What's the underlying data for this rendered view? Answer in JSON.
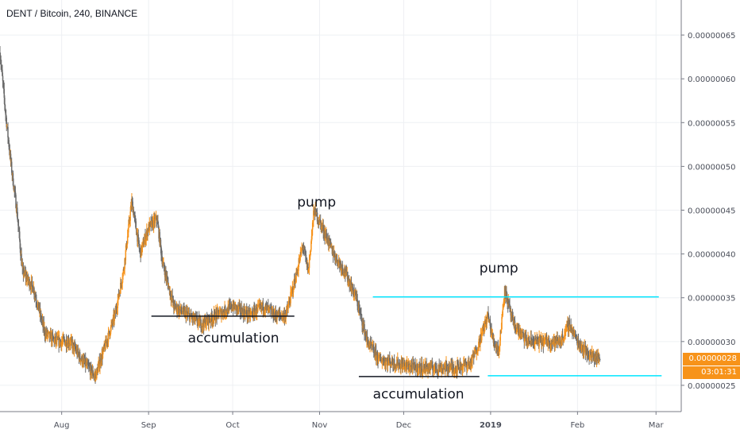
{
  "chart_data": {
    "type": "candlestick",
    "title": "DENT / Bitcoin, 240, BINANCE",
    "ylim": [
      2.2e-07,
      6.9e-07
    ],
    "y_ticks": [
      {
        "value": 2.5e-07,
        "label": "0.00000025"
      },
      {
        "value": 3e-07,
        "label": "0.00000030"
      },
      {
        "value": 3.5e-07,
        "label": "0.00000035"
      },
      {
        "value": 4e-07,
        "label": "0.00000040"
      },
      {
        "value": 4.5e-07,
        "label": "0.00000045"
      },
      {
        "value": 5e-07,
        "label": "0.00000050"
      },
      {
        "value": 5.5e-07,
        "label": "0.00000055"
      },
      {
        "value": 6e-07,
        "label": "0.00000060"
      },
      {
        "value": 6.5e-07,
        "label": "0.00000065"
      }
    ],
    "x_range": [
      "2018-07-10",
      "2019-03-10"
    ],
    "x_ticks": [
      {
        "date": "2018-08-01",
        "label": "Aug",
        "bold": false
      },
      {
        "date": "2018-09-01",
        "label": "Sep",
        "bold": false
      },
      {
        "date": "2018-10-01",
        "label": "Oct",
        "bold": false
      },
      {
        "date": "2018-11-01",
        "label": "Nov",
        "bold": false
      },
      {
        "date": "2018-12-01",
        "label": "Dec",
        "bold": false
      },
      {
        "date": "2019-01-01",
        "label": "2019",
        "bold": true
      },
      {
        "date": "2019-02-01",
        "label": "Feb",
        "bold": false
      },
      {
        "date": "2019-03-01",
        "label": "Mar",
        "bold": false
      }
    ],
    "price_path": [
      [
        "2018-07-10",
        6.3e-07
      ],
      [
        "2018-07-12",
        5.6e-07
      ],
      [
        "2018-07-14",
        5e-07
      ],
      [
        "2018-07-16",
        4.5e-07
      ],
      [
        "2018-07-18",
        3.8e-07
      ],
      [
        "2018-07-22",
        3.6e-07
      ],
      [
        "2018-07-26",
        3.1e-07
      ],
      [
        "2018-07-30",
        3e-07
      ],
      [
        "2018-08-04",
        3e-07
      ],
      [
        "2018-08-08",
        2.8e-07
      ],
      [
        "2018-08-13",
        2.6e-07
      ],
      [
        "2018-08-17",
        3e-07
      ],
      [
        "2018-08-20",
        3.3e-07
      ],
      [
        "2018-08-23",
        3.8e-07
      ],
      [
        "2018-08-26",
        4.6e-07
      ],
      [
        "2018-08-29",
        4e-07
      ],
      [
        "2018-09-01",
        4.3e-07
      ],
      [
        "2018-09-04",
        4.4e-07
      ],
      [
        "2018-09-06",
        3.9e-07
      ],
      [
        "2018-09-10",
        3.4e-07
      ],
      [
        "2018-09-15",
        3.3e-07
      ],
      [
        "2018-09-20",
        3.2e-07
      ],
      [
        "2018-09-25",
        3.3e-07
      ],
      [
        "2018-10-01",
        3.4e-07
      ],
      [
        "2018-10-07",
        3.3e-07
      ],
      [
        "2018-10-12",
        3.4e-07
      ],
      [
        "2018-10-16",
        3.3e-07
      ],
      [
        "2018-10-20",
        3.3e-07
      ],
      [
        "2018-10-24",
        3.8e-07
      ],
      [
        "2018-10-26",
        4.1e-07
      ],
      [
        "2018-10-28",
        3.8e-07
      ],
      [
        "2018-10-30",
        4.5e-07
      ],
      [
        "2018-11-02",
        4.3e-07
      ],
      [
        "2018-11-06",
        4e-07
      ],
      [
        "2018-11-10",
        3.8e-07
      ],
      [
        "2018-11-14",
        3.5e-07
      ],
      [
        "2018-11-18",
        3e-07
      ],
      [
        "2018-11-22",
        2.8e-07
      ],
      [
        "2018-11-28",
        2.75e-07
      ],
      [
        "2018-12-05",
        2.7e-07
      ],
      [
        "2018-12-12",
        2.7e-07
      ],
      [
        "2018-12-19",
        2.7e-07
      ],
      [
        "2018-12-25",
        2.75e-07
      ],
      [
        "2018-12-28",
        3e-07
      ],
      [
        "2018-12-31",
        3.3e-07
      ],
      [
        "2019-01-02",
        3e-07
      ],
      [
        "2019-01-04",
        2.9e-07
      ],
      [
        "2019-01-06",
        3.6e-07
      ],
      [
        "2019-01-09",
        3.2e-07
      ],
      [
        "2019-01-14",
        3e-07
      ],
      [
        "2019-01-20",
        3e-07
      ],
      [
        "2019-01-26",
        3e-07
      ],
      [
        "2019-01-29",
        3.2e-07
      ],
      [
        "2019-02-01",
        3e-07
      ],
      [
        "2019-02-05",
        2.85e-07
      ],
      [
        "2019-02-09",
        2.8e-07
      ]
    ],
    "candles_per_day": 6,
    "candle_up_color": "#f7931a",
    "candle_down_color": "#6b6b6b",
    "annotations": [
      {
        "type": "hline",
        "y": 3.29e-07,
        "x1": "2018-09-02",
        "x2": "2018-10-23",
        "color": "#131722"
      },
      {
        "type": "hline",
        "y": 2.6e-07,
        "x1": "2018-11-15",
        "x2": "2018-12-28",
        "color": "#131722"
      },
      {
        "type": "hline",
        "y": 3.51e-07,
        "x1": "2018-11-20",
        "x2": "2019-03-02",
        "color": "#00e5ff"
      },
      {
        "type": "hline",
        "y": 2.61e-07,
        "x1": "2018-12-31",
        "x2": "2019-03-03",
        "color": "#00e5ff"
      },
      {
        "type": "text",
        "text": "accumulation",
        "date": "2018-09-15",
        "y": 2.99e-07
      },
      {
        "type": "text",
        "text": "pump",
        "date": "2018-10-24",
        "y": 4.54e-07
      },
      {
        "type": "text",
        "text": "accumulation",
        "date": "2018-11-20",
        "y": 2.35e-07
      },
      {
        "type": "text",
        "text": "pump",
        "date": "2018-12-28",
        "y": 3.79e-07
      }
    ],
    "last_price": {
      "value": 2.8e-07,
      "label": "0.00000028",
      "color": "#f7931a"
    },
    "countdown": {
      "label": "03:01:31",
      "color": "#f7931a"
    },
    "grid": true
  }
}
